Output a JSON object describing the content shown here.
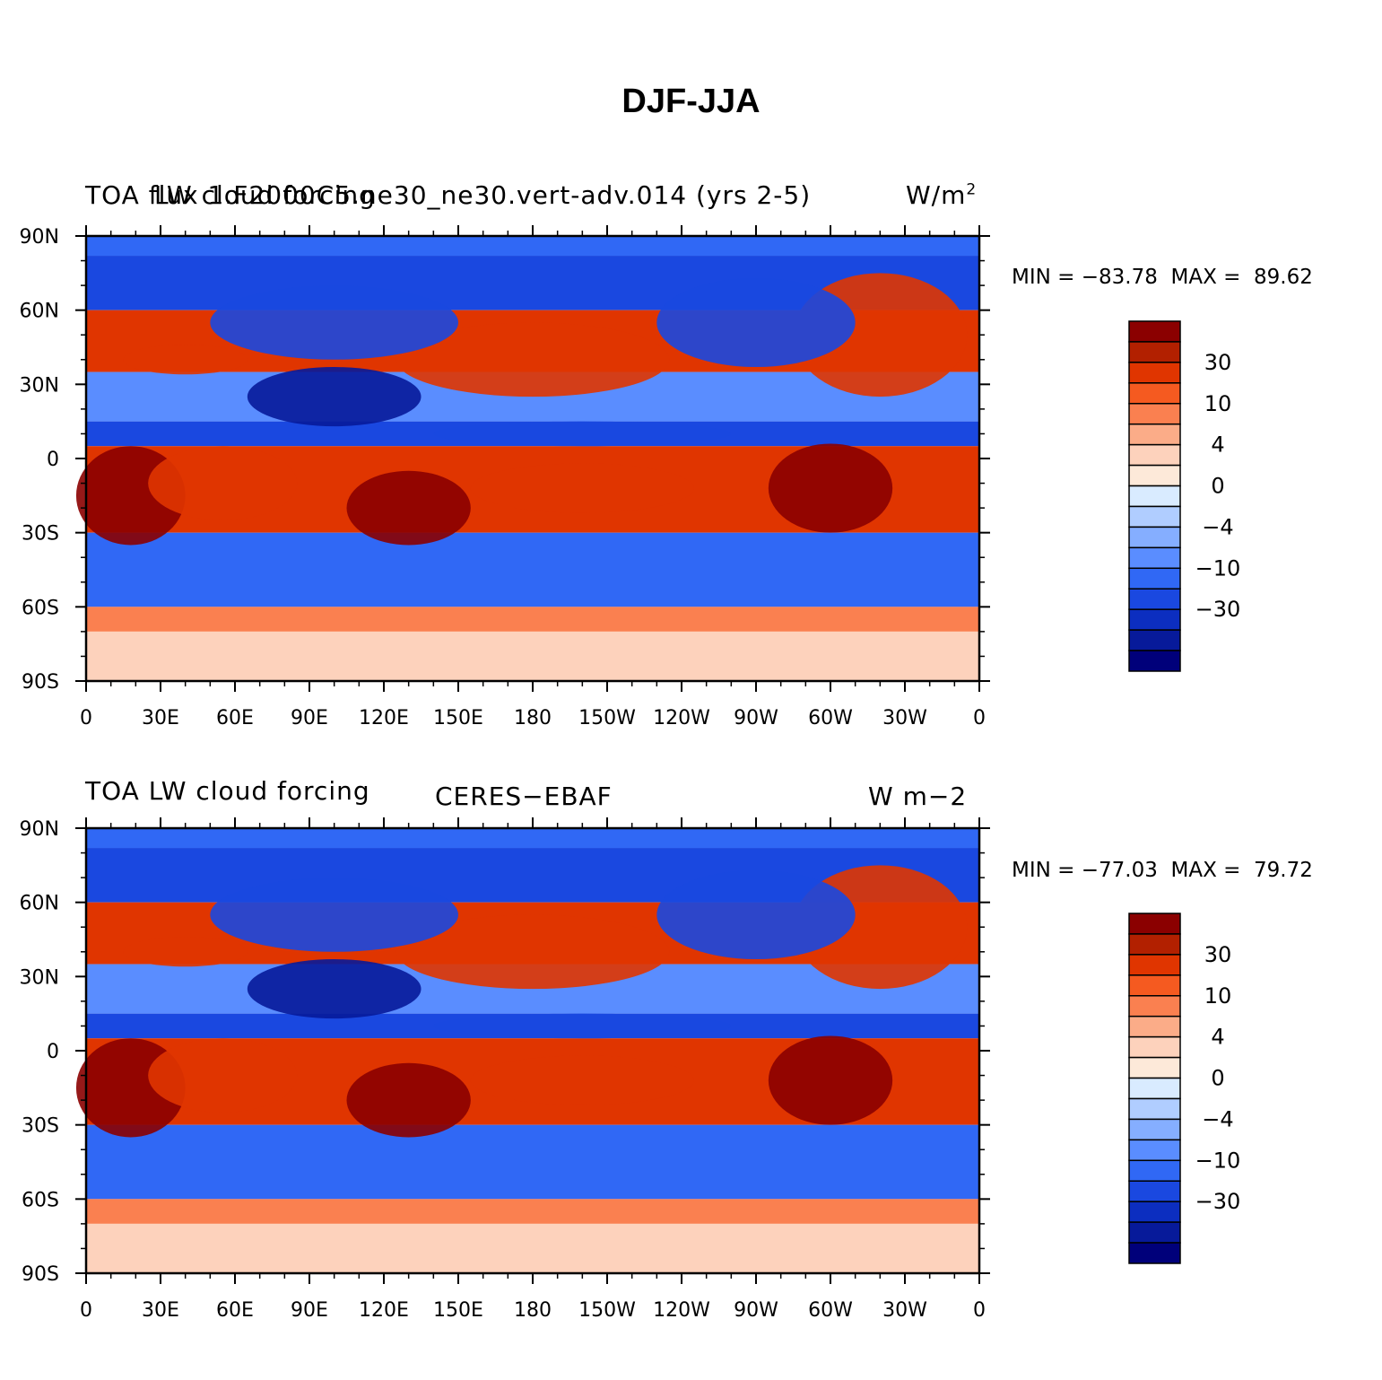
{
  "figure": {
    "title": "DJF-JJA"
  },
  "panels": [
    {
      "left_label": "TOA flux 1.F2000C5.ne30_ne30.vert-adv.014 (yrs 2-5)",
      "left_label_overlap": "LW cloud forcing",
      "center_label": "",
      "right_label": "W/m",
      "right_label_sup": "2",
      "min_label": "MIN = ",
      "min_value": "−83.78",
      "max_label": "MAX = ",
      "max_value": "89.62"
    },
    {
      "left_label": "TOA LW cloud forcing",
      "left_label_overlap": "",
      "center_label": "CERES−EBAF",
      "right_label": "W m−2",
      "right_label_sup": "",
      "min_label": "MIN = ",
      "min_value": "−77.03",
      "max_label": "MAX = ",
      "max_value": "79.72"
    }
  ],
  "chart_data": {
    "type": "heatmap",
    "x_ticks": [
      "0",
      "30E",
      "60E",
      "90E",
      "120E",
      "150E",
      "180",
      "150W",
      "120W",
      "90W",
      "60W",
      "30W",
      "0"
    ],
    "y_ticks": [
      "90N",
      "60N",
      "30N",
      "0",
      "30S",
      "60S",
      "90S"
    ],
    "xlim": [
      0,
      360
    ],
    "ylim": [
      -90,
      90
    ],
    "colorbar": {
      "labels": [
        "30",
        "10",
        "4",
        "0",
        "−4",
        "−10",
        "−30"
      ],
      "colors": [
        "#8b0000",
        "#b22000",
        "#e03500",
        "#f55a20",
        "#fa8050",
        "#fbac88",
        "#fdd2bc",
        "#fde9d9",
        "#d9ebff",
        "#b0cdff",
        "#85aeff",
        "#5a8dff",
        "#3068f5",
        "#1a48e0",
        "#0c2ec0",
        "#071a9a",
        "#00007a"
      ]
    },
    "bands": [
      {
        "lat": [
          90,
          82
        ],
        "value": -12
      },
      {
        "lat": [
          82,
          60
        ],
        "value": -25
      },
      {
        "lat": [
          60,
          35
        ],
        "value": 20
      },
      {
        "lat": [
          35,
          15
        ],
        "value": -8
      },
      {
        "lat": [
          15,
          5
        ],
        "value": -25
      },
      {
        "lat": [
          5,
          -30
        ],
        "value": 25
      },
      {
        "lat": [
          -30,
          -60
        ],
        "value": -12
      },
      {
        "lat": [
          -60,
          -70
        ],
        "value": 8
      },
      {
        "lat": [
          -70,
          -90
        ],
        "value": 2
      }
    ]
  }
}
